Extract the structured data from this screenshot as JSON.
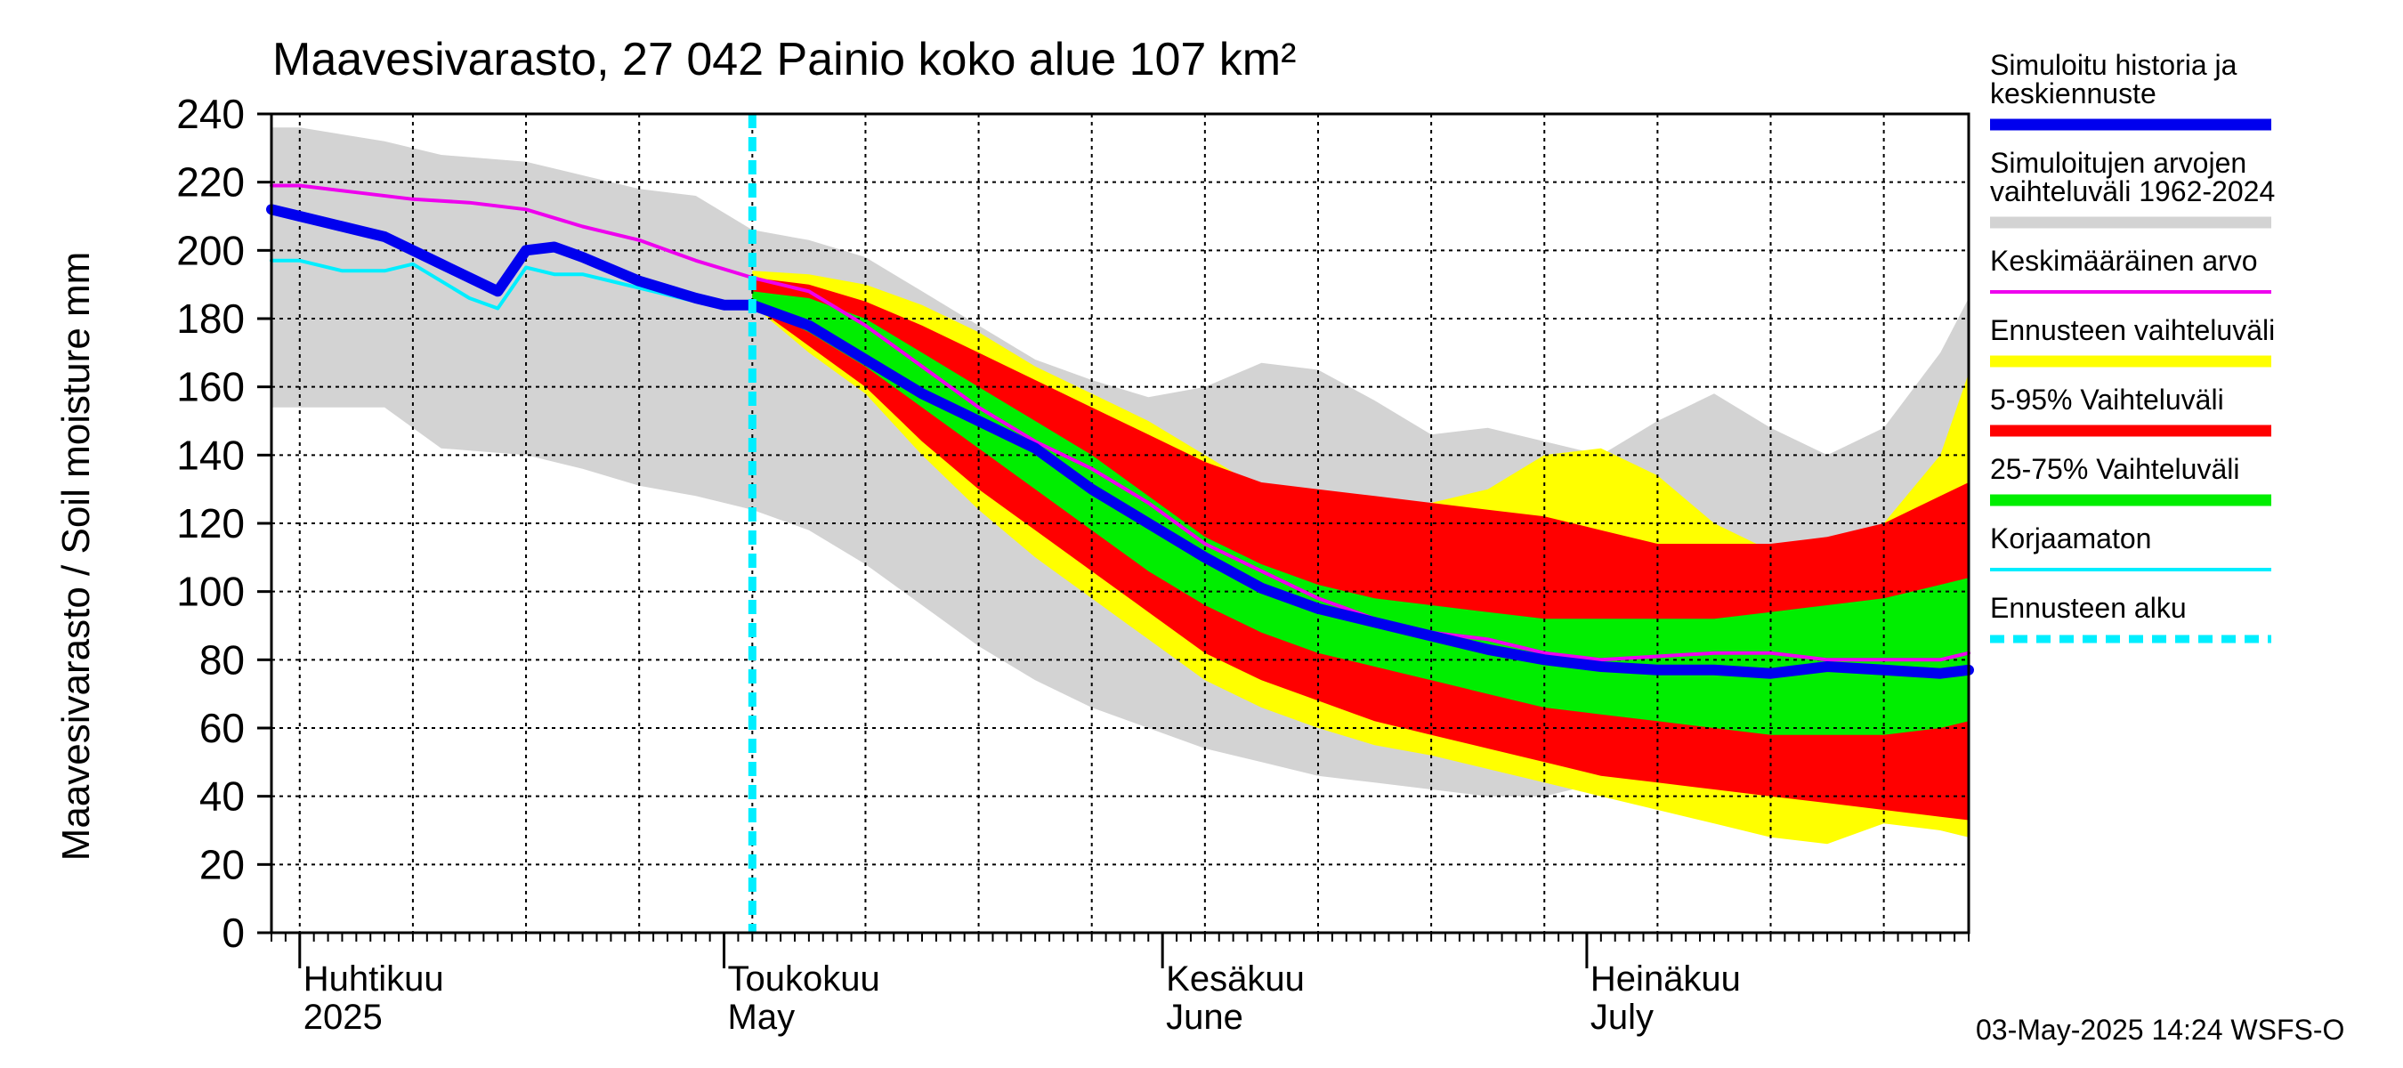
{
  "chart_data": {
    "type": "area",
    "title": "Maavesivarasto, 27 042 Painio koko alue 107 km²",
    "ylabel": "Maavesivarasto / Soil moisture   mm",
    "ylim": [
      0,
      240
    ],
    "yticks": [
      "0",
      "20",
      "40",
      "60",
      "80",
      "100",
      "120",
      "140",
      "160",
      "180",
      "200",
      "220",
      "240"
    ],
    "months": [
      {
        "fi": "Huhtikuu",
        "en": "2025",
        "day": 0
      },
      {
        "fi": "Toukokuu",
        "en": "May",
        "day": 30
      },
      {
        "fi": "Kesäkuu",
        "en": "June",
        "day": 61
      },
      {
        "fi": "Heinäkuu",
        "en": "July",
        "day": 91
      }
    ],
    "x_range_days": [
      -2,
      118
    ],
    "forecast_start_day": 32,
    "timestamp": "03-May-2025 14:24 WSFS-O",
    "colors": {
      "hist_range": "#d3d3d3",
      "forecast_range": "#ffff00",
      "p5_95": "#ff0000",
      "p25_75": "#00ee00",
      "simulated": "#0000ee",
      "mean": "#ee00ee",
      "uncorrected": "#00eeff",
      "forecast_start": "#00eeff"
    },
    "legend": [
      {
        "label": "Simuloitu historia ja",
        "label2": "keskiennuste",
        "key": "simulated",
        "style": "thick"
      },
      {
        "label": "Simuloitujen arvojen",
        "label2": "vaihteluväli 1962-2024",
        "key": "hist_range",
        "style": "thick"
      },
      {
        "label": "Keskimääräinen arvo",
        "key": "mean",
        "style": "thin"
      },
      {
        "label": "Ennusteen vaihteluväli",
        "key": "forecast_range",
        "style": "thick"
      },
      {
        "label": "5-95% Vaihteluväli",
        "key": "p5_95",
        "style": "thick"
      },
      {
        "label": "25-75% Vaihteluväli",
        "key": "p25_75",
        "style": "thick"
      },
      {
        "label": "Korjaamaton",
        "key": "uncorrected",
        "style": "thin"
      },
      {
        "label": "Ennusteen alku",
        "key": "forecast_start",
        "style": "dashed"
      }
    ],
    "series": {
      "hist_range": {
        "x": [
          -2,
          0,
          6,
          10,
          16,
          20,
          24,
          28,
          32,
          36,
          40,
          44,
          48,
          52,
          56,
          60,
          64,
          68,
          72,
          76,
          80,
          84,
          88,
          92,
          96,
          100,
          104,
          108,
          112,
          116,
          118
        ],
        "lo": [
          154,
          154,
          154,
          142,
          140,
          136,
          131,
          128,
          124,
          118,
          108,
          96,
          84,
          74,
          66,
          60,
          54,
          50,
          46,
          44,
          42,
          40,
          40,
          44,
          46,
          44,
          40,
          38,
          34,
          30,
          28
        ],
        "hi": [
          236,
          236,
          232,
          228,
          226,
          222,
          218,
          216,
          206,
          203,
          198,
          188,
          178,
          168,
          162,
          157,
          160,
          167,
          165,
          156,
          146,
          148,
          144,
          140,
          150,
          158,
          148,
          140,
          148,
          170,
          186
        ]
      },
      "forecast_range": {
        "x": [
          32,
          36,
          40,
          44,
          48,
          52,
          56,
          60,
          64,
          68,
          72,
          76,
          80,
          84,
          88,
          92,
          96,
          100,
          104,
          108,
          112,
          116,
          118
        ],
        "lo": [
          184,
          170,
          158,
          140,
          124,
          110,
          98,
          86,
          74,
          66,
          60,
          55,
          52,
          48,
          44,
          40,
          36,
          32,
          28,
          26,
          32,
          30,
          28
        ],
        "hi": [
          194,
          193,
          190,
          184,
          176,
          166,
          158,
          150,
          140,
          130,
          124,
          124,
          126,
          130,
          140,
          142,
          134,
          120,
          112,
          112,
          120,
          140,
          164
        ]
      },
      "p5_95": {
        "x": [
          32,
          36,
          40,
          44,
          48,
          52,
          56,
          60,
          64,
          68,
          72,
          76,
          80,
          84,
          88,
          92,
          96,
          100,
          104,
          108,
          112,
          116,
          118
        ],
        "lo": [
          184,
          172,
          160,
          144,
          130,
          118,
          106,
          94,
          82,
          74,
          68,
          62,
          58,
          54,
          50,
          46,
          44,
          42,
          40,
          38,
          36,
          34,
          33
        ],
        "hi": [
          192,
          190,
          185,
          178,
          170,
          162,
          154,
          146,
          138,
          132,
          130,
          128,
          126,
          124,
          122,
          118,
          114,
          114,
          114,
          116,
          120,
          128,
          132
        ]
      },
      "p25_75": {
        "x": [
          32,
          36,
          40,
          44,
          48,
          52,
          56,
          60,
          64,
          68,
          72,
          76,
          80,
          84,
          88,
          92,
          96,
          100,
          104,
          108,
          112,
          116,
          118
        ],
        "lo": [
          184,
          176,
          166,
          154,
          142,
          130,
          118,
          106,
          96,
          88,
          82,
          78,
          74,
          70,
          66,
          64,
          62,
          60,
          58,
          58,
          58,
          60,
          62
        ],
        "hi": [
          188,
          186,
          180,
          170,
          160,
          150,
          140,
          128,
          116,
          108,
          102,
          98,
          96,
          94,
          92,
          92,
          92,
          92,
          94,
          96,
          98,
          102,
          104
        ]
      },
      "mean": {
        "x": [
          -2,
          0,
          4,
          8,
          12,
          16,
          20,
          24,
          28,
          32,
          36,
          40,
          44,
          48,
          52,
          56,
          60,
          64,
          68,
          72,
          76,
          80,
          84,
          88,
          92,
          96,
          100,
          104,
          108,
          112,
          116,
          118
        ],
        "y": [
          219,
          219,
          217,
          215,
          214,
          212,
          207,
          203,
          197,
          192,
          188,
          178,
          166,
          154,
          144,
          136,
          126,
          114,
          106,
          98,
          92,
          88,
          86,
          82,
          80,
          81,
          82,
          82,
          80,
          80,
          80,
          82
        ]
      },
      "simulated": {
        "x": [
          -2,
          0,
          3,
          6,
          10,
          14,
          16,
          18,
          20,
          24,
          28,
          30,
          32,
          36,
          40,
          44,
          48,
          52,
          56,
          60,
          64,
          68,
          72,
          76,
          80,
          84,
          88,
          92,
          96,
          100,
          104,
          108,
          112,
          116,
          118
        ],
        "y": [
          212,
          210,
          207,
          204,
          196,
          188,
          200,
          201,
          198,
          191,
          186,
          184,
          184,
          178,
          168,
          158,
          150,
          142,
          130,
          120,
          110,
          101,
          95,
          91,
          87,
          83,
          80,
          78,
          77,
          77,
          76,
          78,
          77,
          76,
          77
        ]
      },
      "uncorrected": {
        "x": [
          -2,
          0,
          3,
          6,
          8,
          10,
          12,
          14,
          16,
          18,
          20,
          24,
          28,
          30
        ],
        "y": [
          197,
          197,
          194,
          194,
          196,
          191,
          186,
          183,
          195,
          193,
          193,
          189,
          185,
          184
        ]
      }
    }
  }
}
